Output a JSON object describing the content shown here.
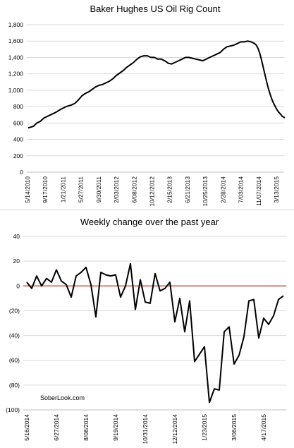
{
  "chart_data": [
    {
      "type": "line",
      "title": "Baker Hughes US Oil Rig Count",
      "ylim": [
        0,
        1800
      ],
      "yticks": [
        "0",
        "200",
        "400",
        "600",
        "800",
        "1,000",
        "1,200",
        "1,400",
        "1,600",
        "1,800"
      ],
      "xtick_labels": [
        "5/14/2010",
        "9/17/2010",
        "1/21/2011",
        "5/27/2011",
        "9/30/2011",
        "2/03/2012",
        "6/08/2012",
        "10/12/2012",
        "2/15/2013",
        "6/21/2013",
        "10/25/2013",
        "2/28/2014",
        "7/03/2014",
        "11/07/2014",
        "3/13/2015"
      ],
      "grid": "horizontal",
      "series": [
        {
          "color": "#000000",
          "x": [
            0,
            6,
            10,
            14,
            18,
            22,
            26,
            32,
            38,
            44,
            50,
            54,
            58,
            62,
            66,
            70,
            74,
            78,
            82,
            86,
            90,
            94,
            98,
            102,
            106,
            110,
            114,
            118,
            122,
            126,
            130,
            134,
            138,
            142,
            146,
            150,
            154,
            158,
            162,
            166,
            170,
            174,
            178,
            182,
            186,
            190,
            194,
            198,
            202,
            206,
            210,
            214,
            218,
            222,
            226,
            230,
            234,
            238,
            242,
            246,
            250,
            254,
            258,
            262,
            264,
            266,
            268,
            270,
            272,
            274,
            276,
            278,
            280,
            282,
            284,
            286,
            288,
            290,
            292,
            294,
            297
          ],
          "values": [
            540,
            560,
            600,
            620,
            660,
            680,
            700,
            730,
            770,
            800,
            820,
            840,
            880,
            930,
            960,
            980,
            1010,
            1040,
            1060,
            1070,
            1090,
            1110,
            1140,
            1180,
            1210,
            1240,
            1280,
            1310,
            1340,
            1380,
            1410,
            1420,
            1420,
            1400,
            1400,
            1380,
            1380,
            1360,
            1330,
            1320,
            1340,
            1360,
            1380,
            1400,
            1400,
            1390,
            1380,
            1370,
            1360,
            1380,
            1400,
            1420,
            1440,
            1460,
            1500,
            1530,
            1540,
            1550,
            1570,
            1590,
            1590,
            1600,
            1590,
            1570,
            1550,
            1510,
            1450,
            1370,
            1280,
            1190,
            1100,
            1020,
            950,
            890,
            840,
            800,
            760,
            730,
            710,
            680,
            665
          ]
        }
      ]
    },
    {
      "type": "line",
      "title": "Weekly change over the past year",
      "ylim": [
        -100,
        40
      ],
      "yticks": [
        "(100)",
        "(80)",
        "(60)",
        "(40)",
        "(20)",
        "0",
        "20",
        "40"
      ],
      "xtick_labels": [
        "5/16/2014",
        "6/27/2014",
        "8/08/2014",
        "9/19/2014",
        "10/31/2014",
        "12/12/2014",
        "1/23/2015",
        "3/06/2015",
        "4/17/2015"
      ],
      "grid": "horizontal",
      "annotation": "SoberLook.com",
      "series": [
        {
          "color": "#000000",
          "values": [
            3,
            -2,
            8,
            0,
            6,
            3,
            13,
            4,
            1,
            -9,
            8,
            11,
            15,
            1,
            -25,
            11,
            9,
            8,
            9,
            -9,
            0,
            18,
            -19,
            5,
            -13,
            -14,
            10,
            -4,
            -2,
            3,
            -29,
            -10,
            -37,
            -12,
            -61,
            -55,
            -49,
            -94,
            -83,
            -84,
            -37,
            -33,
            -63,
            -56,
            -41,
            -12,
            -11,
            -42,
            -26,
            -31,
            -24,
            -11,
            -8
          ]
        }
      ],
      "reference_line": {
        "y": 0,
        "color": "#c0392b"
      }
    }
  ]
}
